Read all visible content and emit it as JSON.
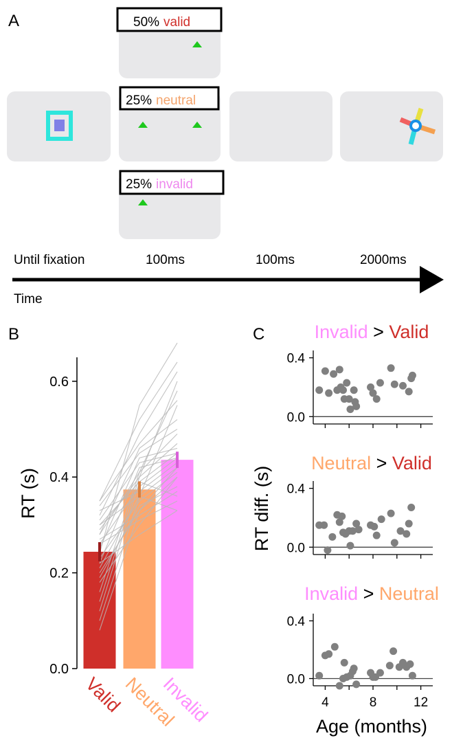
{
  "panel_a": {
    "label": "A",
    "cues": [
      {
        "percent": "50%",
        "word": "valid",
        "word_color": "#d0302b"
      },
      {
        "percent": "25%",
        "word": "neutral",
        "word_color": "#f4a46c"
      },
      {
        "percent": "25%",
        "word": "invalid",
        "word_color": "#ee88ee"
      }
    ],
    "timeline": {
      "durations": [
        "Until fixation",
        "100ms",
        "100ms",
        "2000ms"
      ],
      "axis_label": "Time"
    },
    "colors": {
      "screen": "#e8e8ea",
      "cue_triangle": "#1ec81e",
      "fixation_outer": "#2ee6dc",
      "fixation_inner": "#8080e6",
      "pinwheel": [
        "#f06060",
        "#f4a050",
        "#e8e040",
        "#30d8e0",
        "#1a90e6"
      ]
    }
  },
  "chart_data": [
    {
      "panel": "B",
      "type": "bar",
      "categories": [
        "Valid",
        "Neutral",
        "Invalid"
      ],
      "values": [
        0.244,
        0.374,
        0.436
      ],
      "errors": [
        0.02,
        0.017,
        0.017
      ],
      "colors": [
        "#cf2f2a",
        "#ffa76b",
        "#fe8dfe"
      ],
      "ylabel": "RT (s)",
      "ylim": [
        0.0,
        0.65
      ],
      "yticks": [
        "0.0",
        "0.2",
        "0.4",
        "0.6"
      ],
      "subject_lines": [
        [
          0.08,
          0.33,
          0.4
        ],
        [
          0.1,
          0.36,
          0.42
        ],
        [
          0.12,
          0.39,
          0.45
        ],
        [
          0.14,
          0.4,
          0.47
        ],
        [
          0.16,
          0.41,
          0.49
        ],
        [
          0.18,
          0.3,
          0.4
        ],
        [
          0.2,
          0.33,
          0.42
        ],
        [
          0.21,
          0.36,
          0.55
        ],
        [
          0.22,
          0.42,
          0.44
        ],
        [
          0.23,
          0.35,
          0.41
        ],
        [
          0.24,
          0.55,
          0.68
        ],
        [
          0.25,
          0.44,
          0.46
        ],
        [
          0.26,
          0.38,
          0.44
        ],
        [
          0.27,
          0.32,
          0.37
        ],
        [
          0.28,
          0.46,
          0.52
        ],
        [
          0.29,
          0.4,
          0.6
        ],
        [
          0.3,
          0.36,
          0.33
        ],
        [
          0.31,
          0.43,
          0.45
        ],
        [
          0.32,
          0.49,
          0.62
        ],
        [
          0.33,
          0.37,
          0.43
        ],
        [
          0.34,
          0.45,
          0.5
        ],
        [
          0.35,
          0.52,
          0.64
        ],
        [
          0.3,
          0.39,
          0.36
        ],
        [
          0.26,
          0.31,
          0.35
        ],
        [
          0.22,
          0.28,
          0.33
        ],
        [
          0.19,
          0.34,
          0.38
        ],
        [
          0.35,
          0.47,
          0.56
        ],
        [
          0.28,
          0.41,
          0.58
        ]
      ]
    },
    {
      "panel": "C",
      "type": "scatter",
      "title_parts": [
        {
          "text": "Invalid",
          "color": "#fe8dfe"
        },
        {
          "text": " > ",
          "color": "#000000"
        },
        {
          "text": "Valid",
          "color": "#cf2f2a"
        }
      ],
      "xlim": [
        3,
        13
      ],
      "ylim": [
        -0.05,
        0.45
      ],
      "yticks": [
        "0.0",
        "0.4"
      ],
      "points": [
        [
          3.5,
          0.18
        ],
        [
          4.0,
          0.31
        ],
        [
          4.3,
          0.16
        ],
        [
          4.7,
          0.29
        ],
        [
          5.0,
          0.18
        ],
        [
          5.2,
          0.32
        ],
        [
          5.3,
          0.2
        ],
        [
          5.5,
          0.18
        ],
        [
          5.6,
          0.12
        ],
        [
          5.8,
          0.23
        ],
        [
          6.0,
          0.12
        ],
        [
          6.1,
          0.05
        ],
        [
          6.4,
          0.18
        ],
        [
          6.5,
          0.1
        ],
        [
          6.6,
          0.07
        ],
        [
          7.8,
          0.2
        ],
        [
          8.0,
          0.16
        ],
        [
          8.3,
          0.12
        ],
        [
          8.6,
          0.23
        ],
        [
          9.5,
          0.33
        ],
        [
          9.8,
          0.22
        ],
        [
          10.5,
          0.21
        ],
        [
          11.0,
          0.17
        ],
        [
          11.2,
          0.26
        ],
        [
          11.3,
          0.28
        ]
      ]
    },
    {
      "panel": "C",
      "type": "scatter",
      "title_parts": [
        {
          "text": "Neutral",
          "color": "#ffa76b"
        },
        {
          "text": " > ",
          "color": "#000000"
        },
        {
          "text": "Valid",
          "color": "#cf2f2a"
        }
      ],
      "ylabel": "RT diff. (s)",
      "xlim": [
        3,
        13
      ],
      "ylim": [
        -0.05,
        0.45
      ],
      "yticks": [
        "0.0",
        "0.4"
      ],
      "points": [
        [
          3.5,
          0.15
        ],
        [
          3.9,
          0.15
        ],
        [
          4.2,
          -0.02
        ],
        [
          4.6,
          0.07
        ],
        [
          5.0,
          0.22
        ],
        [
          5.2,
          0.17
        ],
        [
          5.4,
          0.21
        ],
        [
          5.5,
          0.1
        ],
        [
          5.7,
          0.09
        ],
        [
          6.0,
          0.11
        ],
        [
          6.1,
          0.01
        ],
        [
          6.3,
          0.11
        ],
        [
          6.6,
          0.16
        ],
        [
          6.8,
          0.12
        ],
        [
          7.8,
          0.15
        ],
        [
          8.1,
          0.14
        ],
        [
          8.3,
          0.08
        ],
        [
          8.7,
          0.19
        ],
        [
          9.5,
          0.23
        ],
        [
          9.8,
          0.03
        ],
        [
          10.3,
          0.11
        ],
        [
          10.8,
          0.09
        ],
        [
          11.0,
          0.16
        ],
        [
          11.2,
          0.27
        ]
      ]
    },
    {
      "panel": "C",
      "type": "scatter",
      "title_parts": [
        {
          "text": "Invalid",
          "color": "#fe8dfe"
        },
        {
          "text": " > ",
          "color": "#000000"
        },
        {
          "text": "Neutral",
          "color": "#ffa76b"
        }
      ],
      "xlabel": "Age (months)",
      "xticks": [
        "4",
        "8",
        "12"
      ],
      "xlim": [
        3,
        13
      ],
      "ylim": [
        -0.05,
        0.45
      ],
      "yticks": [
        "0.0",
        "0.4"
      ],
      "points": [
        [
          3.5,
          0.02
        ],
        [
          4.0,
          0.16
        ],
        [
          4.3,
          0.17
        ],
        [
          4.8,
          0.22
        ],
        [
          5.2,
          -0.05
        ],
        [
          5.5,
          0.0
        ],
        [
          5.6,
          0.11
        ],
        [
          5.8,
          0.01
        ],
        [
          6.1,
          0.02
        ],
        [
          6.3,
          0.05
        ],
        [
          6.4,
          0.07
        ],
        [
          6.6,
          -0.04
        ],
        [
          7.8,
          0.04
        ],
        [
          8.0,
          0.01
        ],
        [
          8.2,
          0.01
        ],
        [
          8.6,
          0.04
        ],
        [
          9.4,
          0.09
        ],
        [
          9.7,
          0.19
        ],
        [
          10.2,
          0.08
        ],
        [
          10.5,
          0.11
        ],
        [
          10.8,
          0.08
        ],
        [
          11.1,
          0.1
        ],
        [
          11.3,
          0.02
        ]
      ]
    }
  ],
  "panel_labels": {
    "b": "B",
    "c": "C"
  }
}
